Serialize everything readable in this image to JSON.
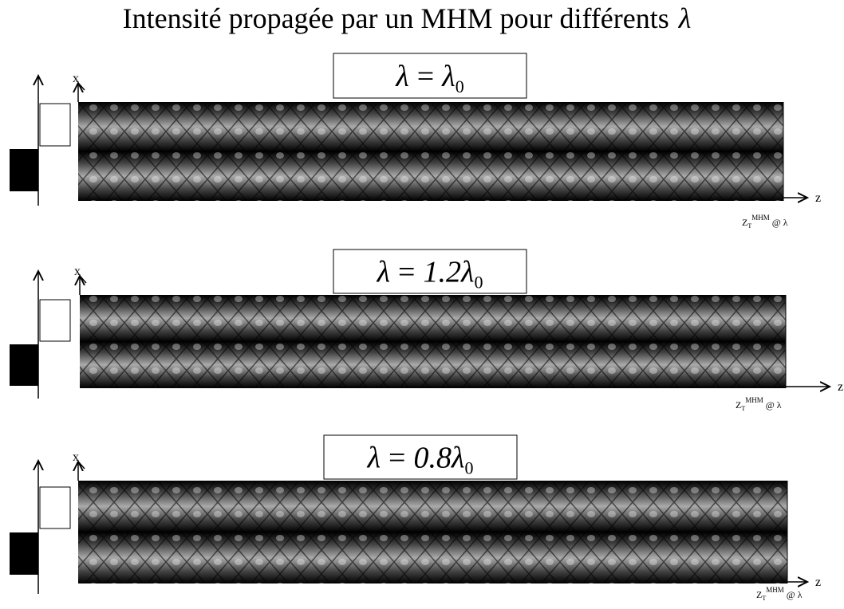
{
  "title": "Intensité propagée par un MHM pour différents",
  "title_symbol": "λ",
  "panels": [
    {
      "label": {
        "lhs": "λ",
        "eq": "=",
        "rhs": "λ",
        "sub": "0"
      },
      "x_axis": "x",
      "z_axis": "z",
      "z_mark": {
        "base": "Z",
        "sub": "T",
        "sup": "MHM",
        "after": "@ λ"
      }
    },
    {
      "label": {
        "lhs": "λ",
        "eq": "=",
        "rhs": "1.2λ",
        "sub": "0"
      },
      "x_axis": "x",
      "z_axis": "z",
      "z_mark": {
        "base": "Z",
        "sub": "T",
        "sup": "MHM",
        "after": "@ λ"
      }
    },
    {
      "label": {
        "lhs": "λ",
        "eq": "=",
        "rhs": "0.8λ",
        "sub": "0"
      },
      "x_axis": "x",
      "z_axis": "z",
      "z_mark": {
        "base": "Z",
        "sub": "T",
        "sup": "MHM",
        "after": "@ λ"
      }
    }
  ]
}
